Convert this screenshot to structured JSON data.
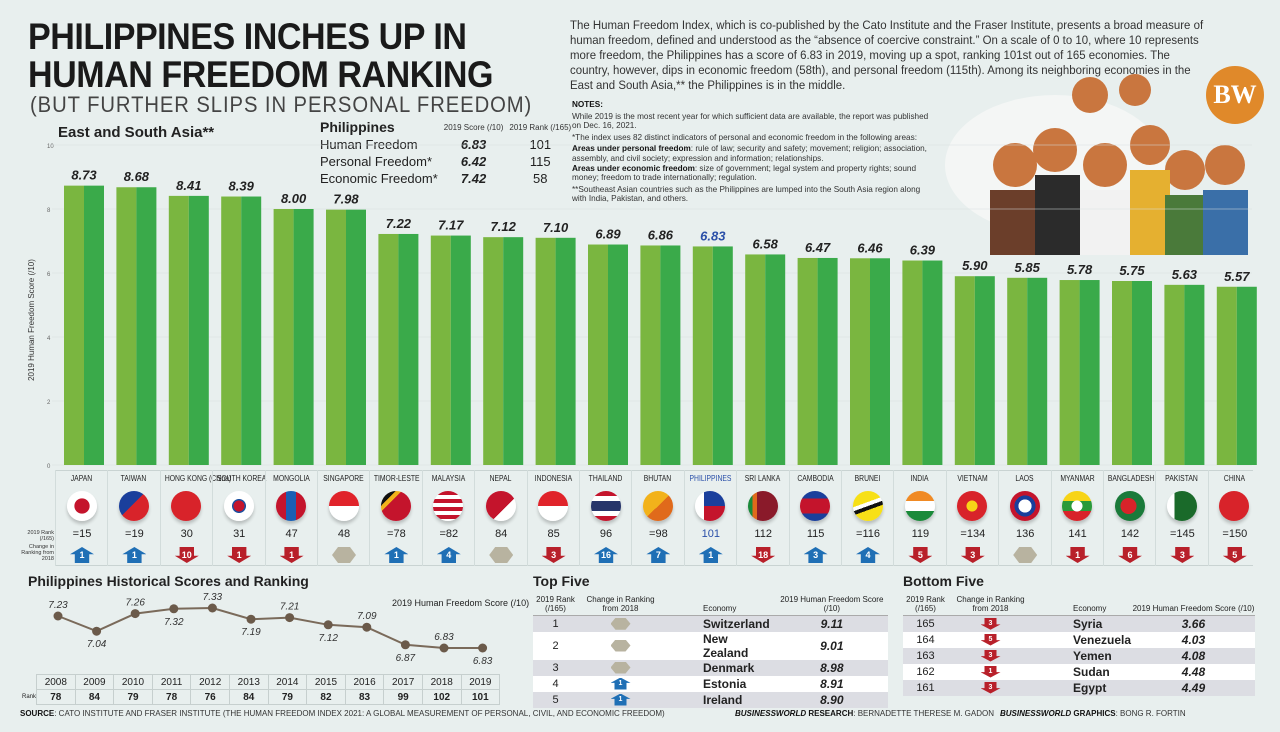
{
  "header": {
    "title_line1": "PHILIPPINES INCHES UP IN",
    "title_line2": "HUMAN FREEDOM RANKING",
    "subtitle": "(BUT FURTHER SLIPS IN PERSONAL FREEDOM)"
  },
  "intro": "The Human Freedom Index, which is co-published by the Cato Institute and the Fraser Institute, presents a broad measure of human freedom, defined and understood as the “absence of coercive constraint.” On a scale of 0 to 10, where 10 represents more freedom, the Philippines has a score of 6.83 in 2019, moving up a spot, ranking 101st out of 165 economies. The country, however, dips in economic freedom (58th), and personal freedom (115th). Among its neighboring economies in the East and South Asia,** the Philippines is in the middle.",
  "notes": {
    "heading": "NOTES:",
    "n1": "While 2019 is the most recent year for which sufficient data are available, the report was published on Dec. 16, 2021.",
    "n2": "*The index uses 82 distinct indicators of personal and economic freedom in the following areas:",
    "personal_label": "Areas under personal freedom",
    "personal_text": ": rule of law; security and safety; movement; religion; association, assembly, and civil society; expression and information; relationships.",
    "economic_label": "Areas under economic freedom",
    "economic_text": ": size of government; legal system and property rights; sound money; freedom to trade internationally; regulation.",
    "n3": "**Southeast Asian countries such as the Philippines are lumped into the South Asia region along with India, Pakistan, and others."
  },
  "logo": "BW",
  "philippines_box": {
    "title": "Philippines",
    "score_header": "2019 Score (/10)",
    "rank_header": "2019 Rank (/165)",
    "rows": [
      {
        "label": "Human Freedom",
        "score": "6.83",
        "rank": "101"
      },
      {
        "label": "Personal Freedom*",
        "score": "6.42",
        "rank": "115"
      },
      {
        "label": "Economic Freedom*",
        "score": "7.42",
        "rank": "58"
      }
    ]
  },
  "row_labels": {
    "rank": "2019 Rank (/165)",
    "change": "Change in Ranking from 2018"
  },
  "colors": {
    "bar_light": "#7ab640",
    "bar_dark": "#3aaa4a",
    "up": "#1f6fb5",
    "down": "#b8202a",
    "same": "#b8b3a0",
    "highlight": "#2a4fa8"
  },
  "chart_data": [
    {
      "type": "bar",
      "title": "East and South Asia**",
      "ylabel": "2019 Human Freedom Score (/10)",
      "ylim": [
        0,
        10
      ],
      "yticks": [
        0,
        2,
        4,
        6,
        8,
        10
      ],
      "highlight": "PHILIPPINES",
      "categories": [
        "JAPAN",
        "TAIWAN",
        "HONG KONG (China)",
        "SOUTH KOREA",
        "MONGOLIA",
        "SINGAPORE",
        "TIMOR-LESTE",
        "MALAYSIA",
        "NEPAL",
        "INDONESIA",
        "THAILAND",
        "BHUTAN",
        "PHILIPPINES",
        "SRI LANKA",
        "CAMBODIA",
        "BRUNEI",
        "INDIA",
        "VIETNAM",
        "LAOS",
        "MYANMAR",
        "BANGLADESH",
        "PAKISTAN",
        "CHINA"
      ],
      "values": [
        8.73,
        8.68,
        8.41,
        8.39,
        8.0,
        7.98,
        7.22,
        7.17,
        7.12,
        7.1,
        6.89,
        6.86,
        6.83,
        6.58,
        6.47,
        6.46,
        6.39,
        5.9,
        5.85,
        5.78,
        5.75,
        5.63,
        5.57
      ],
      "value_labels": [
        "8.73",
        "8.68",
        "8.41",
        "8.39",
        "8.00",
        "7.98",
        "7.22",
        "7.17",
        "7.12",
        "7.10",
        "6.89",
        "6.86",
        "6.83",
        "6.58",
        "6.47",
        "6.46",
        "6.39",
        "5.90",
        "5.85",
        "5.78",
        "5.75",
        "5.63",
        "5.57"
      ],
      "ranks": [
        "=15",
        "=19",
        "30",
        "31",
        "47",
        "48",
        "=78",
        "=82",
        "84",
        "85",
        "96",
        "=98",
        "101",
        "112",
        "115",
        "=116",
        "119",
        "=134",
        "136",
        "141",
        "142",
        "=145",
        "=150"
      ],
      "change": [
        {
          "dir": "up",
          "n": "1"
        },
        {
          "dir": "up",
          "n": "1"
        },
        {
          "dir": "down",
          "n": "10"
        },
        {
          "dir": "down",
          "n": "1"
        },
        {
          "dir": "down",
          "n": "1"
        },
        {
          "dir": "same",
          "n": ""
        },
        {
          "dir": "up",
          "n": "1"
        },
        {
          "dir": "up",
          "n": "4"
        },
        {
          "dir": "same",
          "n": ""
        },
        {
          "dir": "down",
          "n": "3"
        },
        {
          "dir": "up",
          "n": "16"
        },
        {
          "dir": "up",
          "n": "7"
        },
        {
          "dir": "up",
          "n": "1"
        },
        {
          "dir": "down",
          "n": "18"
        },
        {
          "dir": "up",
          "n": "3"
        },
        {
          "dir": "up",
          "n": "4"
        },
        {
          "dir": "down",
          "n": "5"
        },
        {
          "dir": "down",
          "n": "3"
        },
        {
          "dir": "same",
          "n": ""
        },
        {
          "dir": "down",
          "n": "1"
        },
        {
          "dir": "down",
          "n": "6"
        },
        {
          "dir": "down",
          "n": "3"
        },
        {
          "dir": "down",
          "n": "5"
        }
      ],
      "flags": [
        "japan-flag",
        "taiwan-flag",
        "hong-kong-flag",
        "south-korea-flag",
        "mongolia-flag",
        "singapore-flag",
        "timor-leste-flag",
        "malaysia-flag",
        "nepal-flag",
        "indonesia-flag",
        "thailand-flag",
        "bhutan-flag",
        "philippines-flag",
        "sri-lanka-flag",
        "cambodia-flag",
        "brunei-flag",
        "india-flag",
        "vietnam-flag",
        "laos-flag",
        "myanmar-flag",
        "bangladesh-flag",
        "pakistan-flag",
        "china-flag"
      ]
    },
    {
      "type": "line",
      "title": "Philippines Historical Scores and Ranking",
      "series_label": "2019 Human Freedom Score (/10)",
      "x": [
        "2008",
        "2009",
        "2010",
        "2011",
        "2012",
        "2013",
        "2014",
        "2015",
        "2016",
        "2017",
        "2018",
        "2019"
      ],
      "values": [
        7.23,
        7.04,
        7.26,
        7.32,
        7.33,
        7.19,
        7.21,
        7.12,
        7.09,
        6.87,
        6.83,
        6.83
      ],
      "value_labels": [
        "7.23",
        "7.04",
        "7.26",
        "7.32",
        "7.33",
        "7.19",
        "7.21",
        "7.12",
        "7.09",
        "6.87",
        "6.83",
        "6.83"
      ],
      "rank_label": "Rank",
      "ranks": [
        "78",
        "84",
        "79",
        "78",
        "76",
        "84",
        "79",
        "82",
        "83",
        "99",
        "102",
        "101"
      ]
    },
    {
      "type": "table",
      "title": "Top Five",
      "headers": [
        "2019 Rank (/165)",
        "Change in Ranking from 2018",
        "Economy",
        "2019 Human Freedom Score (/10)"
      ],
      "rows": [
        {
          "rank": "1",
          "dir": "same",
          "n": "",
          "economy": "Switzerland",
          "score": "9.11"
        },
        {
          "rank": "2",
          "dir": "same",
          "n": "",
          "economy": "New Zealand",
          "score": "9.01"
        },
        {
          "rank": "3",
          "dir": "same",
          "n": "",
          "economy": "Denmark",
          "score": "8.98"
        },
        {
          "rank": "4",
          "dir": "up",
          "n": "1",
          "economy": "Estonia",
          "score": "8.91"
        },
        {
          "rank": "5",
          "dir": "up",
          "n": "1",
          "economy": "Ireland",
          "score": "8.90"
        }
      ]
    },
    {
      "type": "table",
      "title": "Bottom Five",
      "headers": [
        "2019 Rank (/165)",
        "Change in Ranking from 2018",
        "Economy",
        "2019 Human Freedom Score (/10)"
      ],
      "rows": [
        {
          "rank": "165",
          "dir": "down",
          "n": "3",
          "economy": "Syria",
          "score": "3.66"
        },
        {
          "rank": "164",
          "dir": "down",
          "n": "5",
          "economy": "Venezuela",
          "score": "4.03"
        },
        {
          "rank": "163",
          "dir": "down",
          "n": "3",
          "economy": "Yemen",
          "score": "4.08"
        },
        {
          "rank": "162",
          "dir": "down",
          "n": "1",
          "economy": "Sudan",
          "score": "4.48"
        },
        {
          "rank": "161",
          "dir": "down",
          "n": "3",
          "economy": "Egypt",
          "score": "4.49"
        }
      ]
    }
  ],
  "footer": {
    "source_label": "SOURCE",
    "source_text": ": CATO INSTITUTE AND FRASER INSTITUTE (THE HUMAN FREEDOM INDEX 2021: A GLOBAL MEASUREMENT OF PERSONAL, CIVIL, AND ECONOMIC FREEDOM)",
    "bw": "BUSINESSWORLD",
    "research_label": " RESEARCH",
    "research_text": ": BERNADETTE THERESE M. GADON",
    "graphics_label": " GRAPHICS",
    "graphics_text": ": BONG R. FORTIN"
  }
}
